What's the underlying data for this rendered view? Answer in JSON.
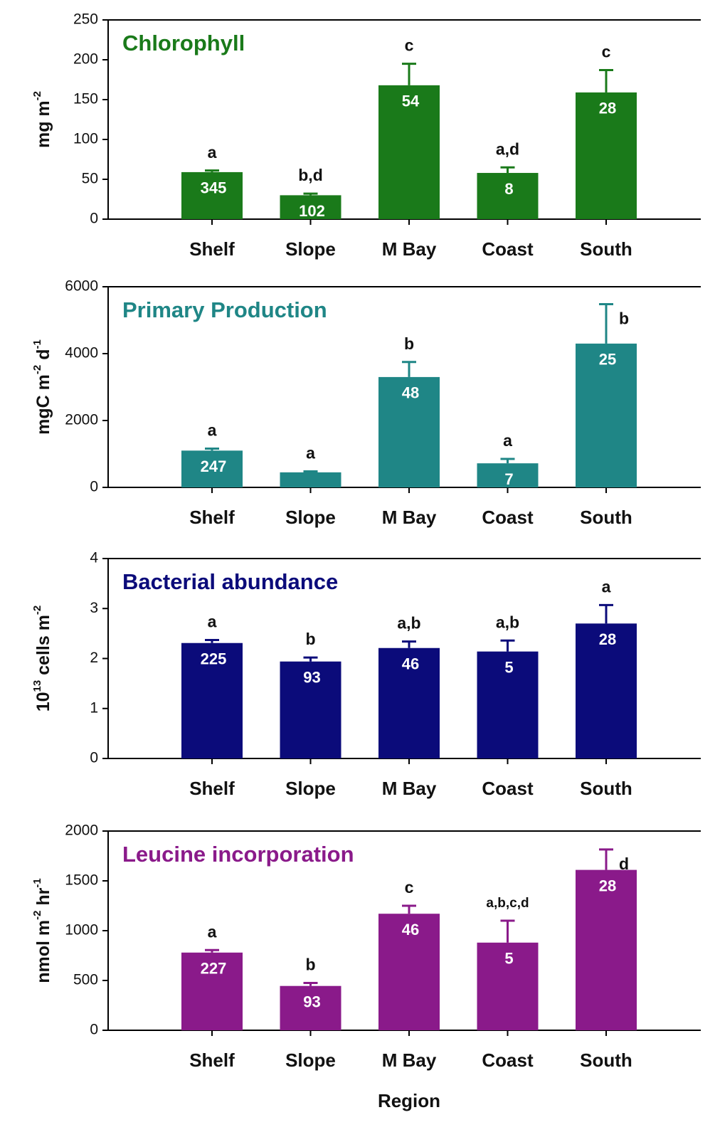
{
  "chart_data": [
    {
      "type": "bar",
      "title": "Chlorophyll",
      "ylabel": [
        {
          "text": "mg m"
        },
        {
          "text": "-2",
          "sup": true
        }
      ],
      "categories": [
        "Shelf",
        "Slope",
        "M Bay",
        "Coast",
        "South"
      ],
      "values": [
        59,
        30,
        168,
        58,
        159
      ],
      "errors": [
        2,
        2,
        27,
        7,
        28
      ],
      "sig_letters": [
        "a",
        "b,d",
        "c",
        "a,d",
        "c"
      ],
      "n_labels": [
        "345",
        "102",
        "54",
        "8",
        "28"
      ],
      "color": "#1a7a1a",
      "ylim": [
        0,
        250
      ],
      "yticks": [
        0,
        50,
        100,
        150,
        200,
        250
      ]
    },
    {
      "type": "bar",
      "title": "Primary Production",
      "ylabel": [
        {
          "text": "mgC m"
        },
        {
          "text": "-2",
          "sup": true
        },
        {
          "text": " d"
        },
        {
          "text": "-1",
          "sup": true
        }
      ],
      "categories": [
        "Shelf",
        "Slope",
        "M Bay",
        "Coast",
        "South"
      ],
      "values": [
        1100,
        450,
        3300,
        720,
        4300
      ],
      "errors": [
        60,
        30,
        450,
        130,
        1180
      ],
      "sig_letters": [
        "a",
        "a",
        "b",
        "a",
        "b"
      ],
      "n_labels": [
        "247",
        null,
        "48",
        "7",
        "25"
      ],
      "color": "#1f8686",
      "ylim": [
        0,
        6000
      ],
      "yticks": [
        0,
        2000,
        4000,
        6000
      ]
    },
    {
      "type": "bar",
      "title": "Bacterial abundance",
      "ylabel": [
        {
          "text": "10"
        },
        {
          "text": "13",
          "sup": true
        },
        {
          "text": " cells m"
        },
        {
          "text": "-2",
          "sup": true
        }
      ],
      "categories": [
        "Shelf",
        "Slope",
        "M Bay",
        "Coast",
        "South"
      ],
      "values": [
        2.31,
        1.94,
        2.21,
        2.14,
        2.7
      ],
      "errors": [
        0.06,
        0.08,
        0.13,
        0.22,
        0.37
      ],
      "sig_letters": [
        "a",
        "b",
        "a,b",
        "a,b",
        "a"
      ],
      "n_labels": [
        "225",
        "93",
        "46",
        "5",
        "28"
      ],
      "color": "#0b0b7a",
      "ylim": [
        0,
        4
      ],
      "yticks": [
        0,
        1,
        2,
        3,
        4
      ]
    },
    {
      "type": "bar",
      "title": "Leucine incorporation",
      "ylabel": [
        {
          "text": "nmol m"
        },
        {
          "text": "-2",
          "sup": true
        },
        {
          "text": " hr"
        },
        {
          "text": "-1",
          "sup": true
        }
      ],
      "categories": [
        "Shelf",
        "Slope",
        "M Bay",
        "Coast",
        "South"
      ],
      "values": [
        780,
        445,
        1170,
        880,
        1610
      ],
      "errors": [
        25,
        30,
        80,
        220,
        205
      ],
      "sig_letters": [
        "a",
        "b",
        "c",
        "a,b,c,d",
        "d"
      ],
      "n_labels": [
        "227",
        "93",
        "46",
        "5",
        "28"
      ],
      "color": "#8a1a8a",
      "ylim": [
        0,
        2000
      ],
      "yticks": [
        0,
        500,
        1000,
        1500,
        2000
      ],
      "xlabel": "Region"
    }
  ]
}
